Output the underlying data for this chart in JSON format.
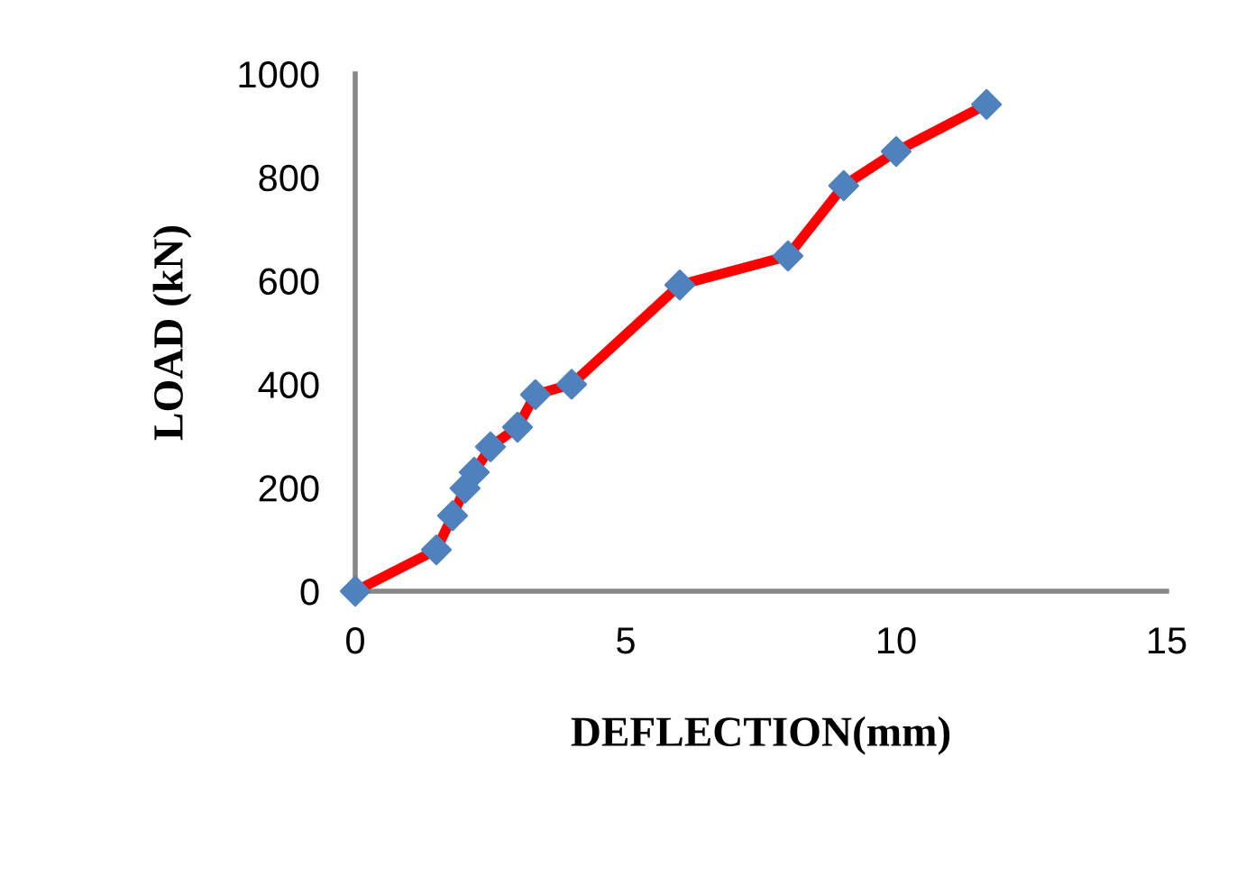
{
  "chart_data": {
    "type": "line",
    "xlabel": "DEFLECTION(mm)",
    "ylabel": "LOAD (kN)",
    "x": [
      0,
      1.5,
      1.8,
      2.03,
      2.2,
      2.5,
      3.0,
      3.33,
      4.0,
      6.0,
      8.0,
      9.03,
      10.0,
      11.67
    ],
    "series": [
      {
        "color": "#ff0000",
        "colors": [
          "#4f81bd",
          "#4f81bd",
          "#4f81bd",
          "#4f81bd",
          "#4f81bd",
          "#4f81bd",
          "#4f81bd",
          "#4f81bd",
          "#4f81bd",
          "#4f81bd",
          "#4f81bd",
          "#4f81bd",
          "#4f81bd",
          "#4f81bd"
        ],
        "values": [
          0,
          80,
          146,
          199,
          230,
          279,
          317,
          380,
          400,
          592,
          648,
          784,
          850,
          941
        ]
      }
    ],
    "marker": "diamond",
    "line_style": "solid",
    "grid": false,
    "legend": false,
    "xlim": [
      0,
      15
    ],
    "xticks": [
      0,
      5,
      10,
      15
    ],
    "ylim": [
      0,
      1000
    ],
    "yticks": [
      0,
      200,
      400,
      600,
      800,
      1000
    ]
  }
}
